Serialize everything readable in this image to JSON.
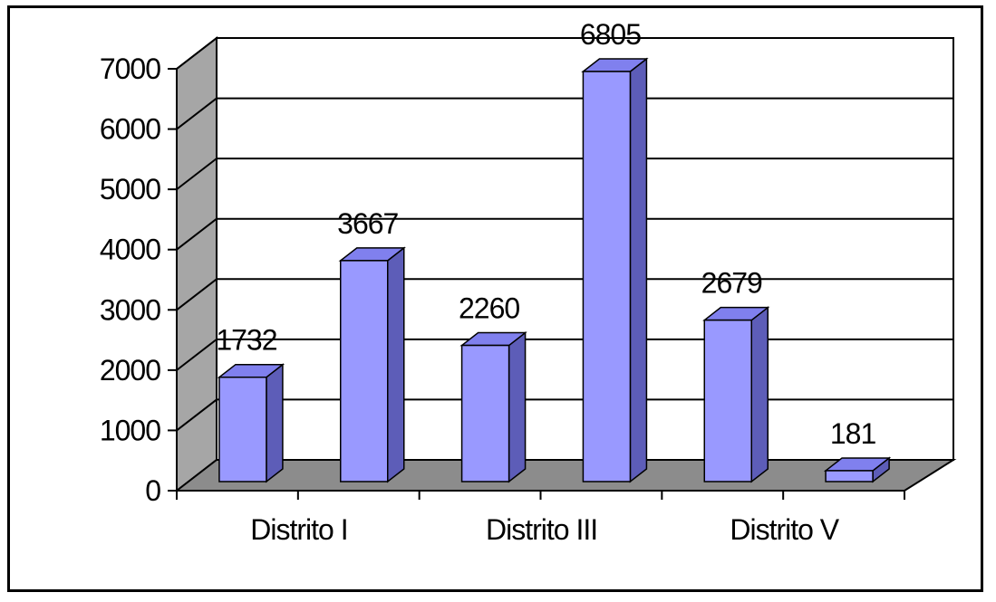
{
  "chart_data": {
    "type": "bar",
    "categories": [
      "Distrito I",
      "",
      "Distrito III",
      "",
      "Distrito V",
      ""
    ],
    "values": [
      1732,
      3667,
      2260,
      6805,
      2679,
      181
    ],
    "y_ticks": [
      "0",
      "1000",
      "2000",
      "3000",
      "4000",
      "5000",
      "6000",
      "7000"
    ],
    "ylim": [
      0,
      7000
    ],
    "grid": true,
    "three_d": true,
    "legend": "none",
    "colors": {
      "bar_front": "#9999ff",
      "bar_side": "#5d5db8",
      "bar_top": "#8080ee",
      "wall": "#a6a6a6",
      "floor": "#8c8c8c",
      "grid": "#000000"
    }
  }
}
